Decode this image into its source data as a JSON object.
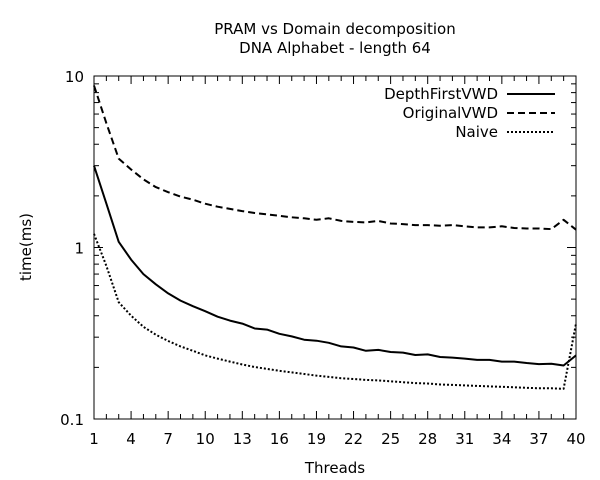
{
  "chart_data": {
    "type": "line",
    "title": "PRAM vs Domain decomposition",
    "subtitle": "DNA Alphabet - length 64",
    "xlabel": "Threads",
    "ylabel": "time(ms)",
    "xlim": [
      1,
      40
    ],
    "ylim": [
      0.1,
      10
    ],
    "yscale": "log",
    "grid": false,
    "legend_position": "top-right",
    "x_ticks": [
      1,
      4,
      7,
      10,
      13,
      16,
      19,
      22,
      25,
      28,
      31,
      34,
      37,
      40
    ],
    "x_tick_labels": [
      "1",
      "4",
      "7",
      "10",
      "13",
      "16",
      "19",
      "22",
      "25",
      "28",
      "31",
      "34",
      "37",
      "40"
    ],
    "y_ticks": [
      0.1,
      1,
      10
    ],
    "y_tick_labels": [
      "0.1",
      "1",
      "10"
    ],
    "x": [
      1,
      2,
      3,
      4,
      5,
      6,
      7,
      8,
      9,
      10,
      11,
      12,
      13,
      14,
      15,
      16,
      17,
      18,
      19,
      20,
      21,
      22,
      23,
      24,
      25,
      26,
      27,
      28,
      29,
      30,
      31,
      32,
      33,
      34,
      35,
      36,
      37,
      38,
      39,
      40
    ],
    "series": [
      {
        "name": "DepthFirstVWD",
        "dash": "solid",
        "values": [
          3.0,
          1.8,
          1.08,
          0.85,
          0.7,
          0.61,
          0.54,
          0.49,
          0.455,
          0.425,
          0.395,
          0.375,
          0.36,
          0.337,
          0.332,
          0.314,
          0.303,
          0.29,
          0.286,
          0.278,
          0.265,
          0.261,
          0.25,
          0.253,
          0.246,
          0.244,
          0.236,
          0.238,
          0.23,
          0.228,
          0.225,
          0.221,
          0.221,
          0.216,
          0.216,
          0.212,
          0.209,
          0.21,
          0.205,
          0.235
        ]
      },
      {
        "name": "OriginalVWD",
        "dash": "dashed",
        "values": [
          8.8,
          5.3,
          3.3,
          2.85,
          2.5,
          2.25,
          2.1,
          1.98,
          1.9,
          1.8,
          1.73,
          1.68,
          1.63,
          1.59,
          1.56,
          1.53,
          1.5,
          1.48,
          1.45,
          1.48,
          1.43,
          1.41,
          1.4,
          1.43,
          1.38,
          1.37,
          1.35,
          1.35,
          1.34,
          1.35,
          1.33,
          1.31,
          1.31,
          1.33,
          1.3,
          1.29,
          1.29,
          1.28,
          1.45,
          1.27
        ]
      },
      {
        "name": "Naive",
        "dash": "dotted",
        "values": [
          1.2,
          0.78,
          0.48,
          0.4,
          0.345,
          0.31,
          0.285,
          0.265,
          0.25,
          0.235,
          0.225,
          0.216,
          0.208,
          0.201,
          0.196,
          0.191,
          0.187,
          0.183,
          0.179,
          0.176,
          0.173,
          0.171,
          0.169,
          0.168,
          0.166,
          0.164,
          0.162,
          0.161,
          0.159,
          0.158,
          0.157,
          0.156,
          0.155,
          0.154,
          0.153,
          0.152,
          0.151,
          0.151,
          0.15,
          0.36
        ]
      }
    ]
  }
}
